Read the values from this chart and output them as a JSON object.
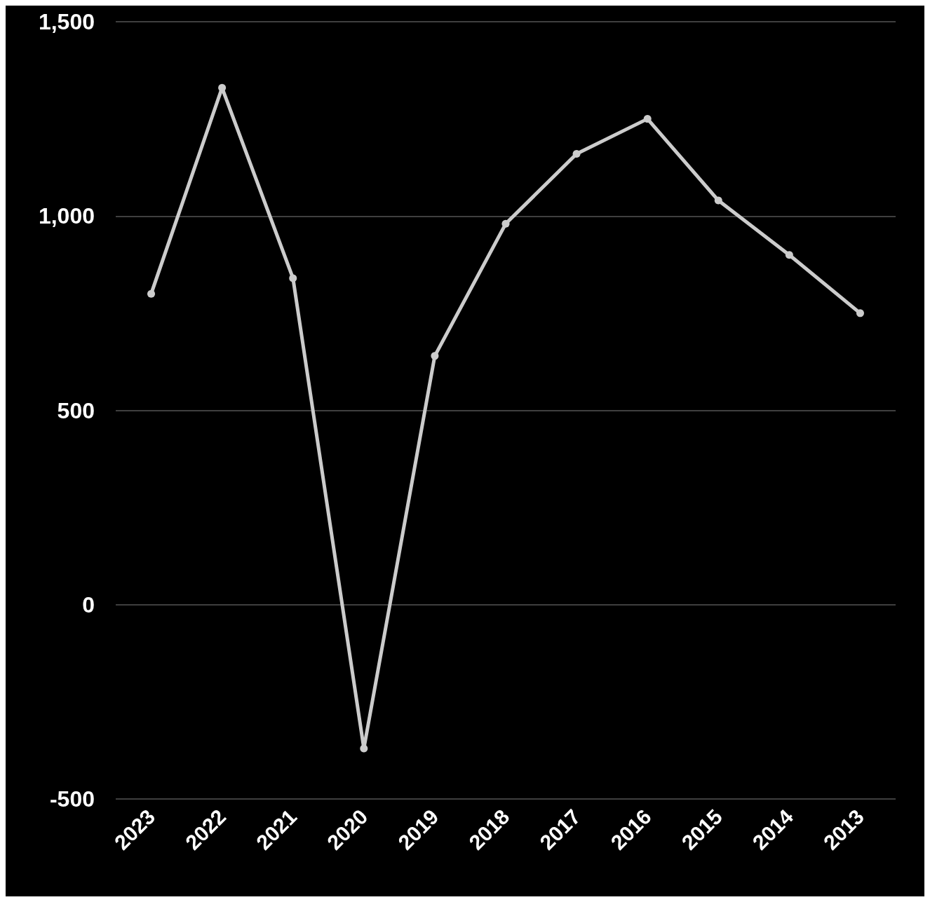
{
  "chart_data": {
    "type": "line",
    "categories": [
      "2023",
      "2022",
      "2021",
      "2020",
      "2019",
      "2018",
      "2017",
      "2016",
      "2015",
      "2014",
      "2013"
    ],
    "series": [
      {
        "color": "#cccccc",
        "values": [
          800,
          1330,
          840,
          -370,
          640,
          980,
          1160,
          1250,
          1040,
          900,
          750
        ]
      }
    ],
    "ylim": [
      -500,
      1500
    ],
    "yticks": [
      {
        "value": -500,
        "label": "-500"
      },
      0,
      500,
      {
        "value": 1000,
        "label": "1,000"
      },
      {
        "value": 1500,
        "label": "1,500"
      }
    ],
    "grid": "y",
    "marker": "circle",
    "line_style": "solid"
  }
}
